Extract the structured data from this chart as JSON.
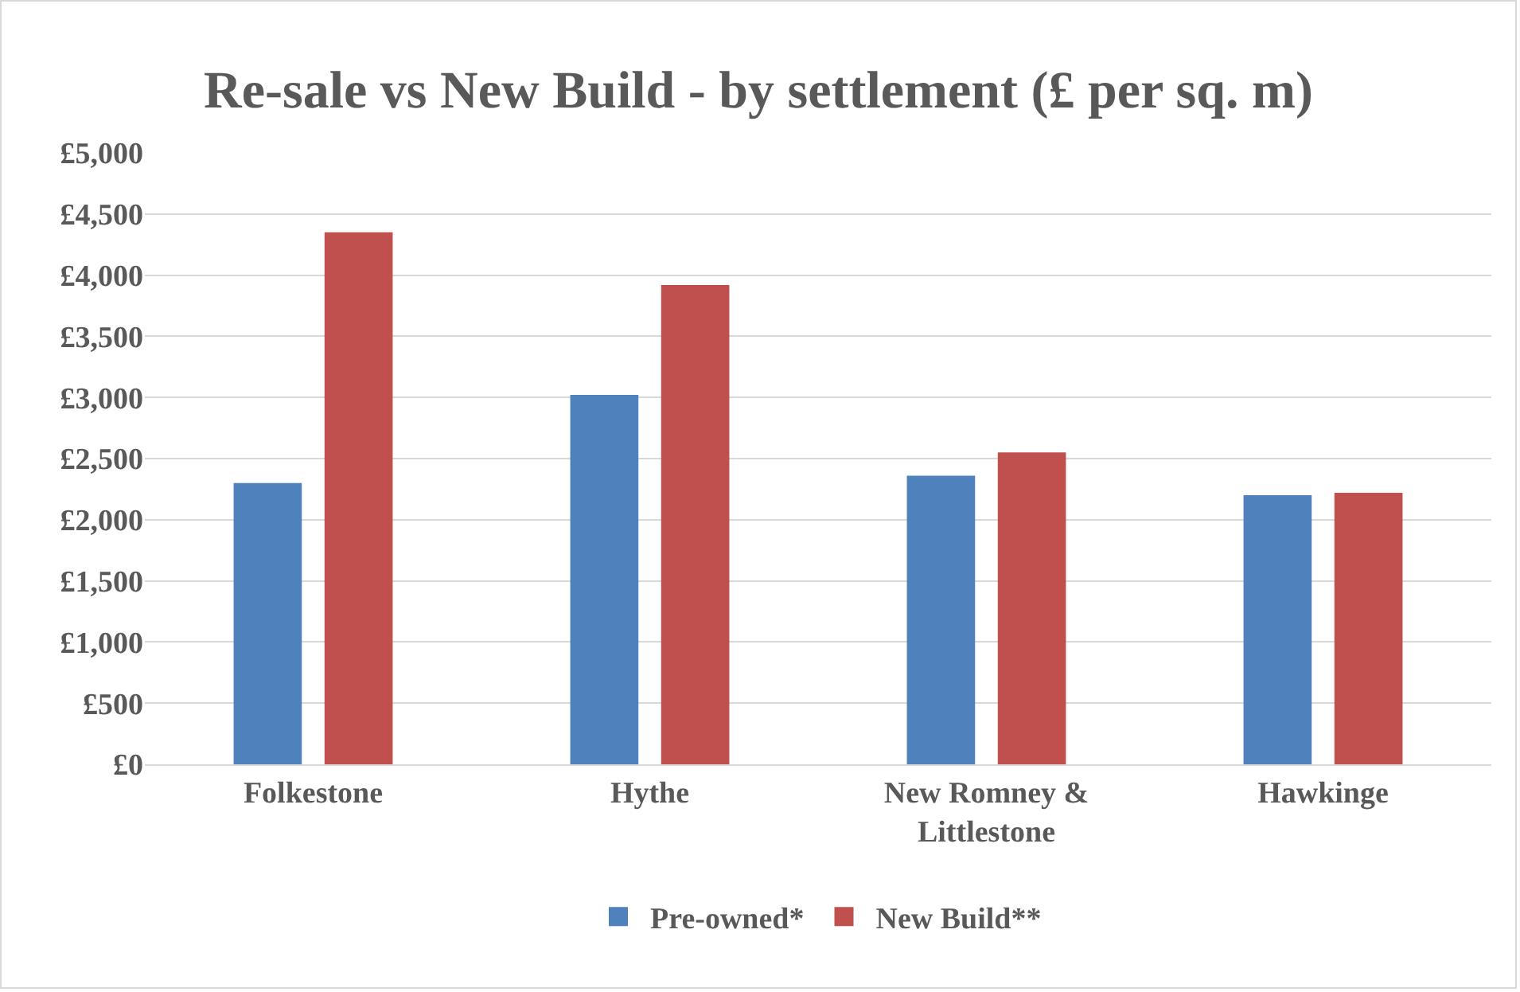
{
  "chart_data": {
    "type": "bar",
    "title": "Re-sale vs New Build - by settlement (£ per sq. m)",
    "categories": [
      "Folkestone",
      "Hythe",
      "New Romney & Littlestone",
      "Hawkinge"
    ],
    "series": [
      {
        "name": "Pre-owned*",
        "color": "#4f81bd",
        "values": [
          2300,
          3020,
          2360,
          2200
        ]
      },
      {
        "name": "New Build**",
        "color": "#c0504d",
        "values": [
          4350,
          3920,
          2550,
          2220
        ]
      }
    ],
    "ylim": [
      0,
      5000
    ],
    "yticks": [
      {
        "value": 0,
        "label": "£0"
      },
      {
        "value": 500,
        "label": "£500"
      },
      {
        "value": 1000,
        "label": "£1,000"
      },
      {
        "value": 1500,
        "label": "£1,500"
      },
      {
        "value": 2000,
        "label": "£2,000"
      },
      {
        "value": 2500,
        "label": "£2,500"
      },
      {
        "value": 3000,
        "label": "£3,000"
      },
      {
        "value": 3500,
        "label": "£3,500"
      },
      {
        "value": 4000,
        "label": "£4,000"
      },
      {
        "value": 4500,
        "label": "£4,500"
      },
      {
        "value": 5000,
        "label": "£5,000"
      }
    ],
    "grid": "y",
    "legend": "bottom"
  }
}
